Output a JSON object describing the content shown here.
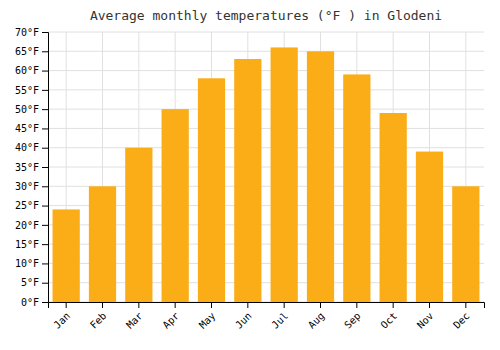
{
  "chart_data": {
    "type": "bar",
    "title": "Average monthly temperatures (°F ) in Glodeni",
    "categories": [
      "Jan",
      "Feb",
      "Mar",
      "Apr",
      "May",
      "Jun",
      "Jul",
      "Aug",
      "Sep",
      "Oct",
      "Nov",
      "Dec"
    ],
    "values": [
      24,
      30,
      40,
      50,
      58,
      63,
      66,
      65,
      59,
      49,
      39,
      30
    ],
    "color": "#FBAD18",
    "ylim": [
      0,
      70
    ],
    "yticks": [
      {
        "value": 0,
        "label": "0°F"
      },
      {
        "value": 5,
        "label": "5°F"
      },
      {
        "value": 10,
        "label": "10°F"
      },
      {
        "value": 15,
        "label": "15°F"
      },
      {
        "value": 20,
        "label": "20°F"
      },
      {
        "value": 25,
        "label": "25°F"
      },
      {
        "value": 30,
        "label": "30°F"
      },
      {
        "value": 35,
        "label": "35°F"
      },
      {
        "value": 40,
        "label": "40°F"
      },
      {
        "value": 45,
        "label": "45°F"
      },
      {
        "value": 50,
        "label": "50°F"
      },
      {
        "value": 55,
        "label": "55°F"
      },
      {
        "value": 60,
        "label": "60°F"
      },
      {
        "value": 65,
        "label": "65°F"
      },
      {
        "value": 70,
        "label": "70°F"
      }
    ],
    "grid": true
  }
}
